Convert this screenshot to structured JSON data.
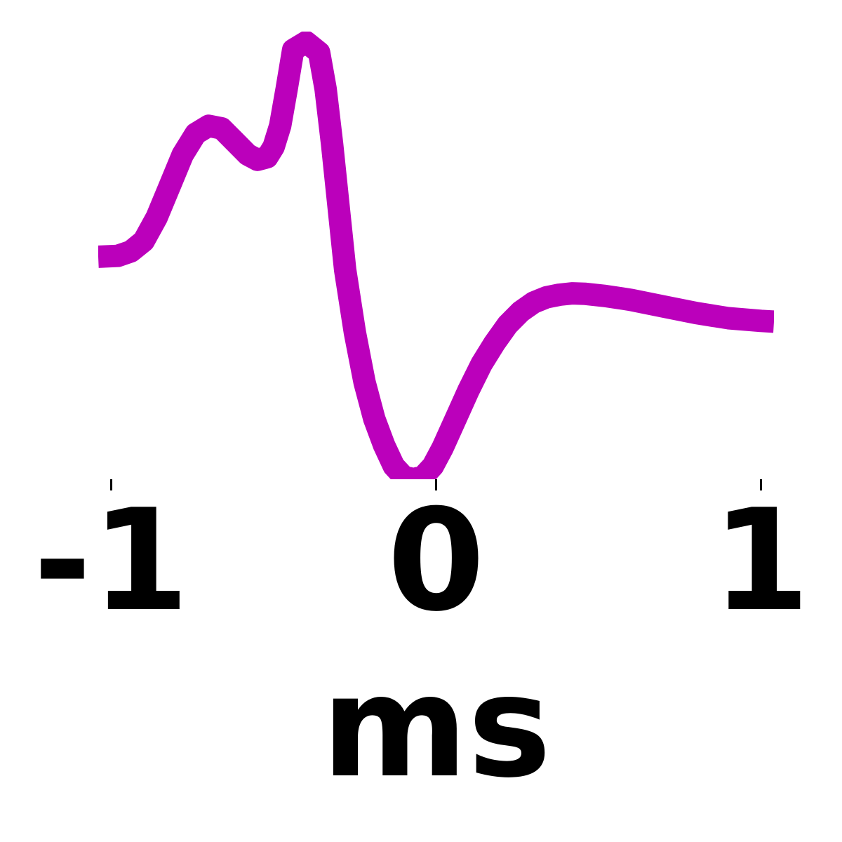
{
  "chart_data": {
    "type": "line",
    "title": "",
    "xlabel": "ms",
    "ylabel": "",
    "xlim": [
      -1.04,
      1.04
    ],
    "ylim": [
      -0.85,
      0.86
    ],
    "grid": false,
    "legend": "none",
    "xticks": [
      -1,
      0,
      1
    ],
    "xtick_labels": [
      "-1",
      "0",
      "1"
    ],
    "series": [
      {
        "color": "#bb00bb",
        "x": [
          -1.04,
          -0.98,
          -0.94,
          -0.9,
          -0.86,
          -0.82,
          -0.78,
          -0.74,
          -0.7,
          -0.66,
          -0.62,
          -0.58,
          -0.55,
          -0.52,
          -0.5,
          -0.48,
          -0.46,
          -0.44,
          -0.4,
          -0.36,
          -0.34,
          -0.32,
          -0.3,
          -0.28,
          -0.25,
          -0.22,
          -0.19,
          -0.16,
          -0.13,
          -0.1,
          -0.07,
          -0.04,
          -0.01,
          0.02,
          0.06,
          0.1,
          0.14,
          0.18,
          0.22,
          0.26,
          0.3,
          0.34,
          0.38,
          0.42,
          0.46,
          0.52,
          0.6,
          0.7,
          0.8,
          0.9,
          1.0,
          1.04
        ],
        "y": [
          0.0,
          0.003,
          0.02,
          0.06,
          0.15,
          0.27,
          0.39,
          0.47,
          0.5,
          0.49,
          0.44,
          0.39,
          0.37,
          0.38,
          0.42,
          0.5,
          0.64,
          0.79,
          0.82,
          0.78,
          0.64,
          0.43,
          0.19,
          -0.05,
          -0.29,
          -0.48,
          -0.62,
          -0.72,
          -0.8,
          -0.84,
          -0.85,
          -0.84,
          -0.8,
          -0.73,
          -0.62,
          -0.51,
          -0.41,
          -0.33,
          -0.26,
          -0.21,
          -0.175,
          -0.155,
          -0.145,
          -0.14,
          -0.142,
          -0.15,
          -0.165,
          -0.19,
          -0.215,
          -0.235,
          -0.245,
          -0.248
        ]
      }
    ]
  }
}
